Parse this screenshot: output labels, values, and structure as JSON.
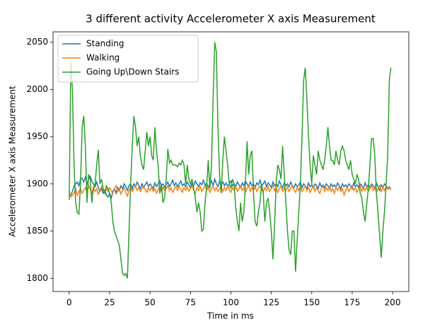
{
  "chart_data": {
    "type": "line",
    "title": "3 different activity Accelerometer X axis Measurement",
    "xlabel": "Time in ms",
    "ylabel": "Accelerometer X axis Measurement",
    "x": [
      0,
      1,
      2,
      3,
      4,
      5,
      6,
      7,
      8,
      9,
      10,
      11,
      12,
      13,
      14,
      15,
      16,
      17,
      18,
      19,
      20,
      21,
      22,
      23,
      24,
      25,
      26,
      27,
      28,
      29,
      30,
      31,
      32,
      33,
      34,
      35,
      36,
      37,
      38,
      39,
      40,
      41,
      42,
      43,
      44,
      45,
      46,
      47,
      48,
      49,
      50,
      51,
      52,
      53,
      54,
      55,
      56,
      57,
      58,
      59,
      60,
      61,
      62,
      63,
      64,
      65,
      66,
      67,
      68,
      69,
      70,
      71,
      72,
      73,
      74,
      75,
      76,
      77,
      78,
      79,
      80,
      81,
      82,
      83,
      84,
      85,
      86,
      87,
      88,
      89,
      90,
      91,
      92,
      93,
      94,
      95,
      96,
      97,
      98,
      99,
      100,
      101,
      102,
      103,
      104,
      105,
      106,
      107,
      108,
      109,
      110,
      111,
      112,
      113,
      114,
      115,
      116,
      117,
      118,
      119,
      120,
      121,
      122,
      123,
      124,
      125,
      126,
      127,
      128,
      129,
      130,
      131,
      132,
      133,
      134,
      135,
      136,
      137,
      138,
      139,
      140,
      141,
      142,
      143,
      144,
      145,
      146,
      147,
      148,
      149,
      150,
      151,
      152,
      153,
      154,
      155,
      156,
      157,
      158,
      159,
      160,
      161,
      162,
      163,
      164,
      165,
      166,
      167,
      168,
      169,
      170,
      171,
      172,
      173,
      174,
      175,
      176,
      177,
      178,
      179,
      180,
      181,
      182,
      183,
      184,
      185,
      186,
      187,
      188,
      189,
      190,
      191,
      192,
      193,
      194,
      195,
      196,
      197,
      198,
      199
    ],
    "series": [
      {
        "name": "Standing",
        "color": "#1f77b4",
        "values": [
          1890,
          1888,
          1892,
          1898,
          1900,
          1902,
          1898,
          1905,
          1906,
          1902,
          1907,
          1900,
          1905,
          1908,
          1903,
          1900,
          1897,
          1902,
          1896,
          1892,
          1895,
          1890,
          1893,
          1888,
          1886,
          1890,
          1885,
          1892,
          1895,
          1890,
          1896,
          1893,
          1898,
          1895,
          1900,
          1897,
          1893,
          1898,
          1900,
          1895,
          1900,
          1897,
          1902,
          1898,
          1895,
          1900,
          1896,
          1899,
          1902,
          1897,
          1900,
          1898,
          1895,
          1901,
          1897,
          1900,
          1903,
          1898,
          1900,
          1896,
          1899,
          1902,
          1897,
          1900,
          1904,
          1898,
          1901,
          1897,
          1900,
          1903,
          1898,
          1900,
          1897,
          1902,
          1899,
          1896,
          1901,
          1898,
          1903,
          1900,
          1897,
          1901,
          1899,
          1904,
          1898,
          1901,
          1896,
          1900,
          1903,
          1898,
          1905,
          1900,
          1897,
          1903,
          1899,
          1902,
          1898,
          1901,
          1897,
          1900,
          1903,
          1898,
          1900,
          1897,
          1902,
          1899,
          1896,
          1901,
          1898,
          1903,
          1900,
          1897,
          1902,
          1898,
          1900,
          1896,
          1901,
          1899,
          1904,
          1898,
          1900,
          1903,
          1897,
          1901,
          1899,
          1896,
          1902,
          1898,
          1900,
          1897,
          1903,
          1899,
          1896,
          1901,
          1898,
          1900,
          1897,
          1902,
          1898,
          1896,
          1900,
          1897,
          1899,
          1902,
          1896,
          1900,
          1898,
          1895,
          1901,
          1897,
          1899,
          1896,
          1900,
          1898,
          1895,
          1901,
          1897,
          1899,
          1896,
          1900,
          1898,
          1895,
          1900,
          1897,
          1899,
          1896,
          1901,
          1898,
          1895,
          1900,
          1897,
          1899,
          1896,
          1900,
          1898,
          1895,
          1901,
          1897,
          1899,
          1896,
          1900,
          1898,
          1895,
          1901,
          1897,
          1899,
          1896,
          1900,
          1898,
          1895,
          1901,
          1897,
          1893,
          1899,
          1896,
          1900,
          1898,
          1895,
          1897,
          1894
        ]
      },
      {
        "name": "Walking",
        "color": "#ff7f0e",
        "values": [
          1892,
          1886,
          1888,
          1890,
          1895,
          1888,
          1892,
          1895,
          1890,
          1893,
          1896,
          1891,
          1898,
          1894,
          1890,
          1896,
          1892,
          1895,
          1889,
          1893,
          1897,
          1893,
          1890,
          1895,
          1892,
          1896,
          1893,
          1890,
          1895,
          1898,
          1892,
          1895,
          1889,
          1893,
          1896,
          1891,
          1887,
          1893,
          1896,
          1892,
          1895,
          1898,
          1893,
          1896,
          1892,
          1895,
          1898,
          1894,
          1891,
          1896,
          1893,
          1897,
          1892,
          1895,
          1890,
          1894,
          1897,
          1892,
          1896,
          1893,
          1895,
          1898,
          1893,
          1896,
          1891,
          1895,
          1897,
          1893,
          1898,
          1894,
          1891,
          1896,
          1893,
          1897,
          1892,
          1895,
          1898,
          1893,
          1890,
          1896,
          1893,
          1897,
          1892,
          1895,
          1898,
          1893,
          1896,
          1891,
          1895,
          1898,
          1893,
          1896,
          1892,
          1895,
          1897,
          1892,
          1896,
          1893,
          1898,
          1894,
          1891,
          1896,
          1893,
          1897,
          1892,
          1895,
          1898,
          1893,
          1896,
          1891,
          1895,
          1898,
          1892,
          1896,
          1893,
          1897,
          1892,
          1895,
          1898,
          1894,
          1891,
          1896,
          1893,
          1897,
          1892,
          1895,
          1898,
          1893,
          1896,
          1891,
          1895,
          1898,
          1892,
          1896,
          1893,
          1897,
          1892,
          1895,
          1898,
          1894,
          1891,
          1896,
          1893,
          1897,
          1892,
          1895,
          1898,
          1893,
          1896,
          1891,
          1895,
          1898,
          1892,
          1896,
          1893,
          1890,
          1895,
          1898,
          1892,
          1896,
          1893,
          1897,
          1892,
          1895,
          1890,
          1896,
          1893,
          1897,
          1892,
          1895,
          1888,
          1893,
          1896,
          1892,
          1895,
          1898,
          1893,
          1896,
          1891,
          1895,
          1898,
          1892,
          1896,
          1893,
          1897,
          1892,
          1895,
          1898,
          1893,
          1896,
          1891,
          1895,
          1898,
          1892,
          1896,
          1893,
          1897,
          1894,
          1896,
          1895
        ]
      },
      {
        "name": "Going Up\\Down Stairs",
        "color": "#2ca02c",
        "values": [
          1883,
          2030,
          2000,
          1920,
          1880,
          1870,
          1868,
          1900,
          1960,
          1972,
          1940,
          1880,
          1910,
          1905,
          1880,
          1895,
          1900,
          1920,
          1936,
          1900,
          1905,
          1895,
          1890,
          1898,
          1895,
          1890,
          1880,
          1860,
          1850,
          1845,
          1840,
          1835,
          1820,
          1805,
          1803,
          1805,
          1800,
          1850,
          1900,
          1940,
          1972,
          1960,
          1940,
          1950,
          1930,
          1920,
          1915,
          1935,
          1955,
          1940,
          1950,
          1930,
          1925,
          1960,
          1935,
          1920,
          1890,
          1900,
          1880,
          1885,
          1905,
          1937,
          1922,
          1925,
          1920,
          1920,
          1920,
          1918,
          1922,
          1920,
          1925,
          1920,
          1900,
          1920,
          1905,
          1900,
          1905,
          1895,
          1885,
          1870,
          1880,
          1870,
          1850,
          1852,
          1880,
          1897,
          1925,
          1895,
          1920,
          1990,
          2050,
          2040,
          1960,
          1910,
          1890,
          1925,
          1950,
          1935,
          1920,
          1900,
          1895,
          1905,
          1900,
          1875,
          1860,
          1850,
          1880,
          1860,
          1870,
          1900,
          1945,
          1910,
          1930,
          1935,
          1890,
          1860,
          1855,
          1870,
          1880,
          1900,
          1890,
          1860,
          1880,
          1885,
          1870,
          1850,
          1820,
          1855,
          1900,
          1920,
          1915,
          1905,
          1940,
          1910,
          1880,
          1850,
          1830,
          1825,
          1850,
          1850,
          1807,
          1840,
          1870,
          1900,
          1950,
          2010,
          2023,
          1990,
          1950,
          1920,
          1900,
          1930,
          1920,
          1910,
          1935,
          1925,
          1920,
          1915,
          1925,
          1940,
          1960,
          1940,
          1925,
          1925,
          1920,
          1935,
          1925,
          1920,
          1935,
          1940,
          1935,
          1925,
          1920,
          1915,
          1925,
          1910,
          1905,
          1900,
          1910,
          1905,
          1890,
          1885,
          1870,
          1860,
          1878,
          1895,
          1920,
          1948,
          1948,
          1930,
          1890,
          1870,
          1845,
          1822,
          1850,
          1870,
          1900,
          1930,
          2010,
          2023
        ]
      }
    ],
    "xlim": [
      -10,
      210
    ],
    "xticks": [
      0,
      25,
      50,
      75,
      100,
      125,
      150,
      175,
      200
    ],
    "ylim": [
      1786,
      2061
    ],
    "yticks": [
      1800,
      1850,
      1900,
      1950,
      2000,
      2050
    ],
    "legend": "upper left"
  }
}
